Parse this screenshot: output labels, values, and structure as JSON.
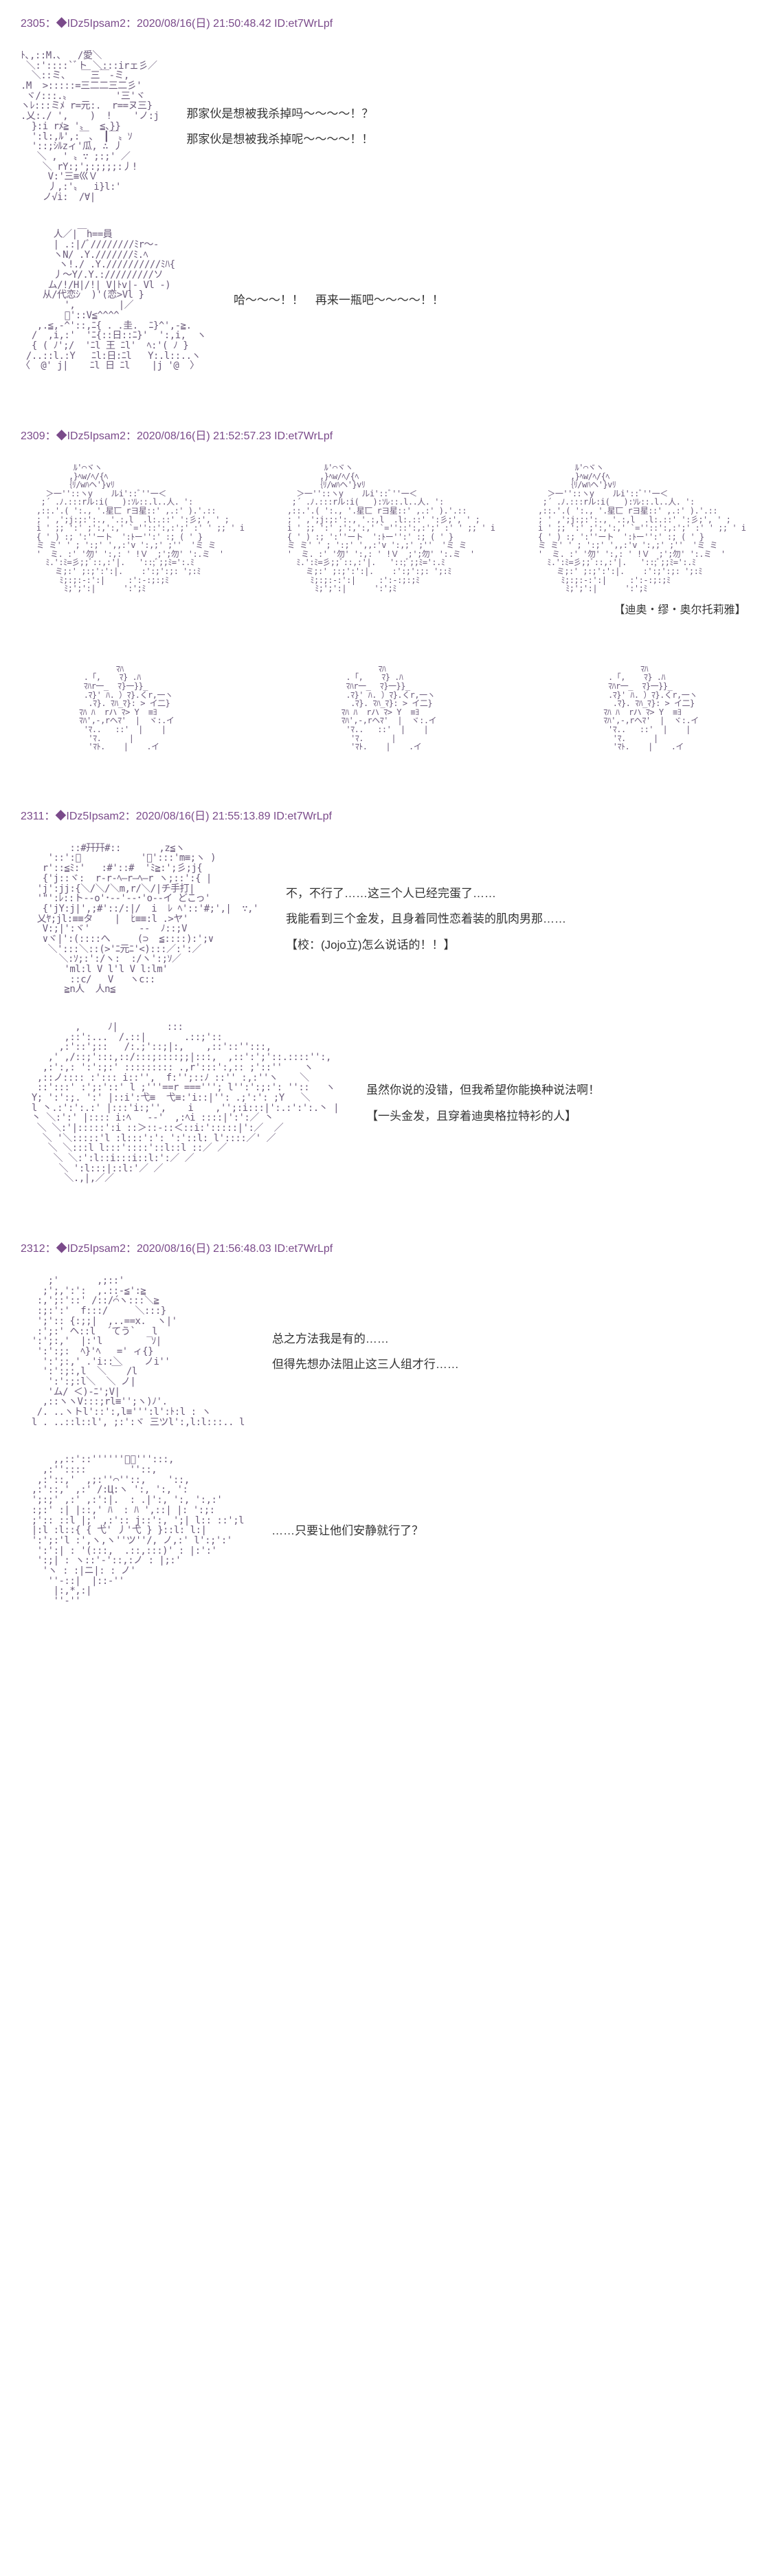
{
  "posts": [
    {
      "id": "2305",
      "header": "2305：◆IDz5Ipsam2：2020/08/16(日) 21:50:48.42 ID:et7WrLpf",
      "blocks": [
        {
          "ascii_key": "face_angry",
          "lines": [
            "那家伙是想被我杀掉吗～～～～！？",
            "那家伙是想被我杀掉呢～～～～！！"
          ]
        },
        {
          "ascii_key": "drinking",
          "lines": [
            "哈～～～！！　再来一瓶吧～～～～！！"
          ]
        }
      ]
    },
    {
      "id": "2309",
      "header": "2309：◆IDz5Ipsam2：2020/08/16(日) 21:52:57.23 ID:et7WrLpf",
      "trio_caption": "【迪奥・缪・奥尔托莉雅】"
    },
    {
      "id": "2311",
      "header": "2311：◆IDz5Ipsam2：2020/08/16(日) 21:55:13.89 ID:et7WrLpf",
      "blocks": [
        {
          "ascii_key": "girl_bow",
          "lines": [
            "不，不行了……这三个人已经完蛋了……",
            "我能看到三个金发，且身着同性恋着装的肌肉男那……",
            "【校：(Jojo立)怎么说话的！！】"
          ]
        },
        {
          "ascii_key": "girl_side",
          "lines": [
            "虽然你说的没错，但我希望你能换种说法啊！",
            "【一头金发，且穿着迪奥格拉特衫的人】"
          ]
        }
      ]
    },
    {
      "id": "2312",
      "header": "2312：◆IDz5Ipsam2：2020/08/16(日) 21:56:48.03 ID:et7WrLpf",
      "blocks": [
        {
          "ascii_key": "man_think",
          "lines": [
            "总之方法我是有的……",
            "但得先想办法阻止这三人组才行……"
          ]
        },
        {
          "ascii_key": "man_close",
          "lines": [
            "……只要让他们安静就行了？"
          ]
        }
      ]
    }
  ],
  "colors": {
    "header": "#7a4a8a",
    "ascii": "#6a5a7a",
    "text": "#333333",
    "background": "#ffffff"
  },
  "ascii": {
    "face_angry": "ﾄ､,::M.､   /愛＼\n ＼:'::::`ﾞト ＼:::irェ彡／\n  ＼::ミ、  ￣三￣-ミ,\n.M  >:::::=三二二三二彡'\n ヾ/:::.〟        '三'ヾ\nヽﾚ:::ミﾒ r=元:.  r==ヌ三}\n.乂:./ ',    )  !    'ノ:j\n  }:i rﾒ≧ '〟  ≦、}}\n  ':l:,ﾙ',:￣、 ┃￣〟ｿ\n  '::;ｼﾙzィ'瓜, ∴ 丿\n   ＼ , ' 〟∵ ;:;' ／\n    ＼ rY:;';:;;;;:丿!\n     V:'三≡巛Ｖ\n     丿,:'〟  i}l:'\n    ノ√i:  /∀|",
    "drinking": "      人／|￣h==員\n      | .:|/ﾞ////////ﾐr～-\n      ヽN/ .Y.///////ﾐ.ﾍ\n       ヽ!./ .Y.//////////ﾐﾊ{\n      丿～Y/.Y.://///////ソ\n     ム/!/H|/!| V|ﾄv|- Vl -)\n    从/代恋ｼ  )'(恋>Vl }\n        ',        |／\n        ﾟ'::V≦^^^^\n   ,.≦,-^'::,ﾆ{ . .圭.  ﾆ}^',-≧.\n  /  ,i,:'  'ﾆ{::日::ﾆ}'  ':,i,  ヽ\n  { ( ﾉ';/  'ﾆl 王 ﾆl'  ﾍ:'( ﾉ }\n /..::l.:Y   ﾆl:日:ﾆl   Y:.l::..ヽ\n〈  @' j|    ﾆl 日 ﾆl    |j '@  〉",
    "trio_face": "          ﾙ'⌒ヾヽ\n         ,}ﾍw/ﾍ/{ﾍ\n        ｛ﾘ/wﾊヘ'}vﾘ\n    ＞一''::ヽy    ルi'::ﾞ''一＜\n   ;´ .ﾉ.:::rル:i(   ):ｿﾚ::.l..人. ':\n  ,::.'.( ':., '.星匸 rヨ星::' ,.:' ).'.::\n  ; ' ,';j:;:':., '.:,l  .l:.::' ':彡;', ' ;\n  i ' ;; ':' ;':,':,' `=''::':,:';' :' ' ;; ' i\n  { ' ) :; ':''ート  ':ﾄー'':' :; ( ' }\n  ミ ミ' ' ; ':;' ',,:'v ':,;' ;''  'ミ ミ\n  '  ミ. :' '勿' ':,: ' !Ｖ  ;';勿' ':.ミ  '\n    ﾐ.':ﾐ=彡;;ﾞ::,:'|.   '::;ﾞ;;ﾐ=':.ﾐ\n      ミ;:' ;:;':':|.    :':;':;: ';:ﾐ\n       ﾐ;:;:‐:':|     :':‐:;:;ﾐ\n        ﾐ;';':|      ':';ﾐ",
    "hand": "         ﾏﾊ\n  .「,    ﾏ} .ﾊ\n  ﾏﾊr一_  ﾏ}一}}_\n  .ﾏ}' ﾊ. ）ﾏ}.くr,一ヽ\n   .ﾏ}. ﾏﾊ_ﾏ}: > イ二}\n ﾏﾊ ﾊ  rハ ﾏ> Y  ≡ﾖ\n ﾏﾊ',‐,rヘﾏ'  |  ヾ:.イ\n  'ﾏ..   ::'  |    |\n   'ﾏ.      |\n   'ﾏﾄ.    |    .イ",
    "girl_bow": "         ::#幵幵#::       ,z≦ヽ\n     '::':ﾟ           'ﾟ':::'m≡;ヽ )\n    r'::≦ﾐ:'   :#'::#  'ﾐ≧:';彡;j{\n    {'j::ヾ:  r‐r‐ﾍ―r―ﾍ―r ヽ;::':{ |\n   'j':jj:{＼/＼/＼m,r/＼/|チ手打|\n   '\"':ﾚ::ト--o'･--'--･'o--イ どこっ'\n    {'jY:j|',;#'::/:|/  i  ﾚ ﾍ'::'#;',|  ∵,'\n   乂ﾔ;jl:≡≡タ    |  ﾋ≡≡:l .>ヤ'\n    V:;|':ヾ'         -‐  ﾉ::;V\n    ∨ヾ|':(::::へ     (⊃  ≦::::):';∨\n     ＼':::＼::(>'ﾆ元ﾆ'<):::／:':／\n       ＼:ｿ;:':/ヽ:  :/ヽ':;ｿ／\n        'ml:l V l'l V l:lm'\n         ::c/   V   ヽc::\n        ≧n人  人n≦",
    "girl_side": "          ,     ﾉ|         :::\n        ,::':...  /.::|       .::;'::\n       ,:'::';::   /:.;'::;|:,    ,::'::'':::,\n     ,' ,/::;':::,::/:::;::::;;|:::,  ,::':';'::.::::'':,\n    ,:':,: ':':;:' ::::::::: .,r':::':,:: ;'::''    ヽ\n   ,::ノ:::: :'::: i::'',  f:'';::ﾉ ::'' :,:''ヽ    ＼\n   ::':::' :';:'::' l ;'''==r ==='''; l'':':;:': ''::   ヽ\n  Y; ':':;. ':' |::i':弋≡  弋≡:'i::|'': .;':': ;Y   ＼\n  l 丶.:':':.:' |:::'i:;'',    i    ,'';:i:::|':.:':':.丶 |\n  丶 ＼:':' |:::: i:ﾍ   -‐'  ,:ﾍi ::::|':':／ 丶\n   ＼ ＼:'|:::::':i ::＞::‐::＜::i:':::::|':／  ／\n    ＼ '＼:::::'l :l:::':': ':'::l: l'::::／' ／\n     ＼ ＼:::l l:::'::::'::l::l ::／ ／\n      ＼ ＼:':l::i:::i::l:':／ ／\n       ＼ ':l:::|::l:'／ ／\n        ＼.,|,／／",
    "man_think": "     ;'       ,;::'\n    ;';,':':  ,.::‐≦':≧\n   :,';:'::' /::/́⌒ヽ:::＼≧\n   :;:':'  f:::/     ＼:::}\n   ';':: {:;;|  ,..==x.  ヽ|'\n   :';:' ヘ::l  ´てう`  _l\n  ':';:,'  |:'l         ｿ|\n   ':':;:  ﾍ}'ﾍ   =' ィ{}\n    ':';:,' .'i::＼    ノi''\n    ':':;:,l  ＼ ￣ /l\n     ':':;:l＼  ＼ ノ|\n     'ム/ ＜)‐ﾆ';V|\n    ,::ヽヽV:::;rl≡'';ヽ)ﾉ'.\n   /. ..ヽトl'::':,l≡''':l':ﾄ:l : ヽ\n  l . ..::l::l', ;:':ヾ 三ツl':,l:l:::.. l",
    "man_close": "      ,,::'::''''''ﾞﾞ''':::,\n    ,:''::::        ''::,\n   ,:'::,'  ,;:''⌒''::,    '::,\n  ,:'::,' ,:' /:Ц:ヽ ':, ':, ':\n  ';:;' ,:' ,:':|.  : .|':, ':, ':,:'\n  :;:' :| |::,' ﾊ  : ﾊ ',::| |: ':;:\n  ;':: ::l |;' ,:':: j::':, ';| l:: ::';l\n  |:l :l::{ { 弋' 丿'弋 } }::l: l:|\n  ':';:'l :',ヽ,ヽ''ツ''/, ノ,:' l':;':'\n   ':':| : '(:::,  .::,:::)' : |:':'\n   ':;| : ヽ::'‐'::,:ノ : |;:'\n    'ヽ : :|ニ|: : ノ'\n     ''‐::|  |::‐''\n      |:,*,:|\n      ''‐''"
  }
}
